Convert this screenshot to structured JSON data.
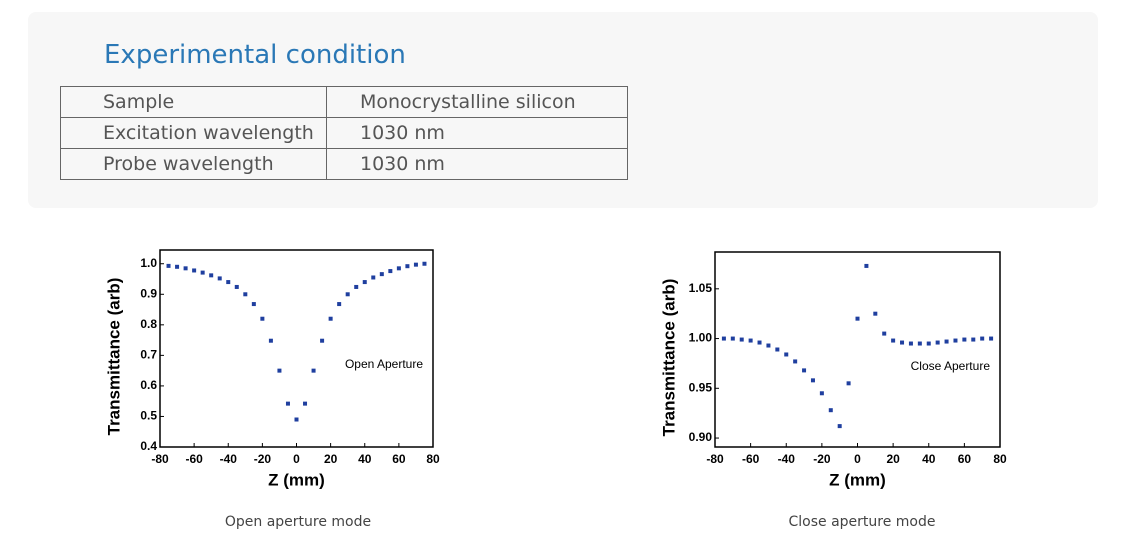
{
  "header": {
    "title": "Experimental condition"
  },
  "table": {
    "rows": [
      [
        "Sample",
        "Monocrystalline silicon"
      ],
      [
        "Excitation wavelength",
        "1030 nm"
      ],
      [
        "Probe wavelength",
        "1030 nm"
      ]
    ]
  },
  "figures": [
    {
      "caption": "Open aperture mode",
      "chart_data": {
        "type": "scatter",
        "x_label": "Z (mm)",
        "y_label": "Transmittance (arb)",
        "annotation": "Open Aperture",
        "x": [
          -75,
          -70,
          -65,
          -60,
          -55,
          -50,
          -45,
          -40,
          -35,
          -30,
          -25,
          -20,
          -15,
          -10,
          -5,
          0,
          5,
          10,
          15,
          20,
          25,
          30,
          35,
          40,
          45,
          50,
          55,
          60,
          65,
          70,
          75
        ],
        "values": [
          0.993,
          0.99,
          0.985,
          0.978,
          0.971,
          0.962,
          0.952,
          0.94,
          0.924,
          0.9,
          0.868,
          0.82,
          0.748,
          0.65,
          0.542,
          0.49,
          0.542,
          0.65,
          0.748,
          0.82,
          0.868,
          0.9,
          0.924,
          0.94,
          0.955,
          0.966,
          0.976,
          0.985,
          0.992,
          0.997,
          1.0
        ],
        "color": "#1f3f9f",
        "xlim": [
          -80,
          80
        ],
        "xticks": [
          -80,
          -60,
          -40,
          -20,
          0,
          20,
          40,
          60,
          80
        ],
        "ylim": [
          0.4,
          1.045
        ],
        "yticks": [
          0.4,
          0.5,
          0.6,
          0.7,
          0.8,
          0.9,
          {
            "value": 1,
            "label": "1.0"
          }
        ]
      }
    },
    {
      "caption": "Close aperture mode",
      "chart_data": {
        "type": "scatter",
        "x_label": "Z (mm)",
        "y_label": "Transmittance (arb)",
        "annotation": "Close Aperture",
        "x": [
          -75,
          -70,
          -65,
          -60,
          -55,
          -50,
          -45,
          -40,
          -35,
          -30,
          -25,
          -20,
          -15,
          -10,
          -5,
          0,
          5,
          10,
          15,
          20,
          25,
          30,
          35,
          40,
          45,
          50,
          55,
          60,
          65,
          70,
          75
        ],
        "values": [
          1.0,
          1.0,
          0.999,
          0.998,
          0.996,
          0.993,
          0.989,
          0.984,
          0.977,
          0.968,
          0.958,
          0.945,
          0.928,
          0.912,
          0.955,
          1.02,
          1.073,
          1.025,
          1.005,
          0.998,
          0.996,
          0.995,
          0.995,
          0.995,
          0.996,
          0.997,
          0.998,
          0.999,
          0.999,
          1.0,
          1.0
        ],
        "color": "#1f3f9f",
        "xlim": [
          -80,
          80
        ],
        "xticks": [
          -80,
          -60,
          -40,
          -20,
          0,
          20,
          40,
          60,
          80
        ],
        "ylim": [
          0.891,
          1.087
        ],
        "yticks": [
          {
            "value": 0.9,
            "label": "0.90"
          },
          0.95,
          {
            "value": 1,
            "label": "1.00"
          },
          1.05
        ]
      }
    }
  ]
}
